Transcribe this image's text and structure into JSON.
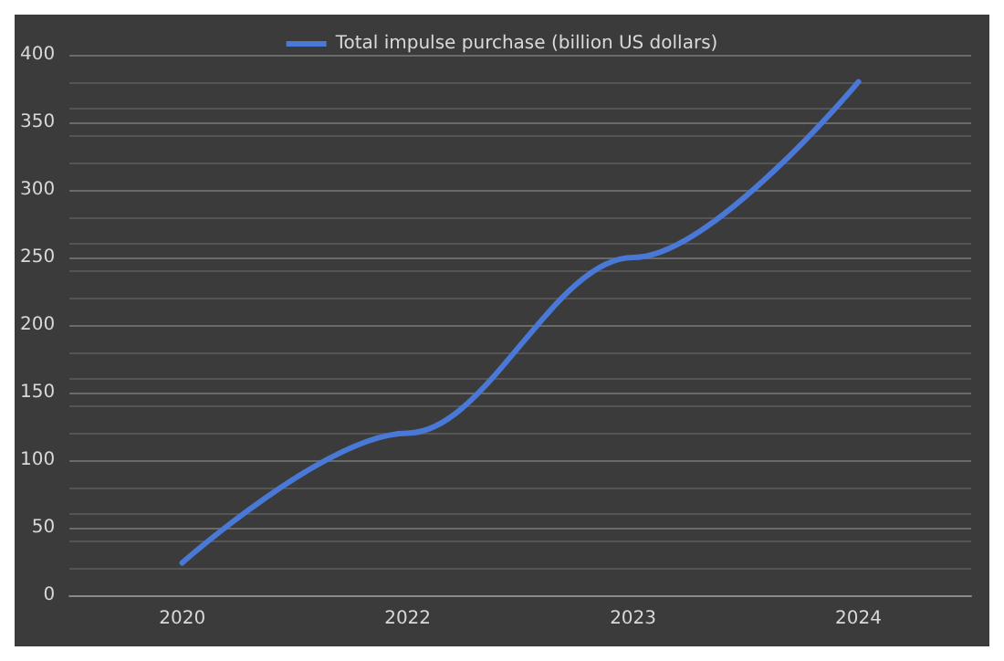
{
  "chart_data": {
    "type": "line",
    "categories": [
      "2020",
      "2022",
      "2023",
      "2024"
    ],
    "series": [
      {
        "name": "Total impulse purchase (billion US dollars)",
        "color": "#4a78d6",
        "values": [
          24,
          120,
          250,
          380
        ]
      }
    ],
    "ylim": [
      0,
      400
    ],
    "yticks": [
      0,
      50,
      100,
      150,
      200,
      250,
      300,
      350,
      400
    ],
    "grid": "y",
    "legend": "top",
    "marker": "none",
    "line_style": "solid"
  }
}
